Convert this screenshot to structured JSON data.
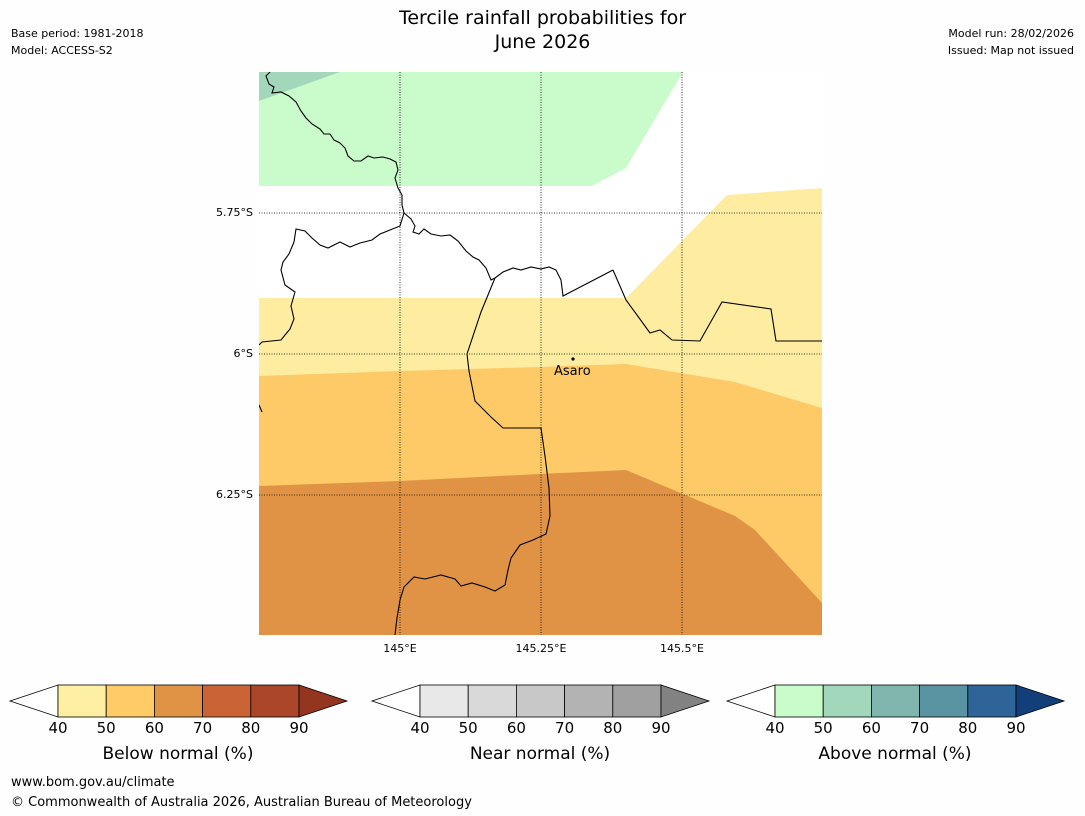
{
  "title": {
    "line1": "Tercile rainfall probabilities for",
    "line2": "June 2026"
  },
  "meta_left": {
    "base_period": "Base period: 1981-2018",
    "model": "Model: ACCESS-S2"
  },
  "meta_right": {
    "model_run": "Model run: 28/02/2026",
    "issued": "Issued: Map not issued"
  },
  "map": {
    "lat_labels": [
      "5.75°S",
      "6°S",
      "6.25°S"
    ],
    "lon_labels": [
      "145°E",
      "145.25°E",
      "145.5°E"
    ],
    "town": "Asaro",
    "colors": {
      "above_40_50": "#c9fbcb",
      "above_50_60": "#a3d7bc",
      "below_40_50": "#fdeb9f",
      "below_50_60": "#fdca67",
      "below_60_70": "#e09345",
      "border": "#000000"
    }
  },
  "legends": [
    {
      "name": "Below normal (%)",
      "ticks": [
        "40",
        "50",
        "60",
        "70",
        "80",
        "90"
      ],
      "colors": [
        "#fef0a2",
        "#fecb67",
        "#e09345",
        "#cb6434",
        "#ac4628",
        "#94351f"
      ]
    },
    {
      "name": "Near normal (%)",
      "ticks": [
        "40",
        "50",
        "60",
        "70",
        "80",
        "90"
      ],
      "colors": [
        "#e8e8e8",
        "#d9d9d9",
        "#c8c8c8",
        "#b3b3b3",
        "#a0a0a0",
        "#828282"
      ]
    },
    {
      "name": "Above normal (%)",
      "ticks": [
        "40",
        "50",
        "60",
        "70",
        "80",
        "90"
      ],
      "colors": [
        "#c9fbcb",
        "#a3d7bc",
        "#80b6ad",
        "#5a93a1",
        "#2e6497",
        "#123e79"
      ]
    }
  ],
  "footer": {
    "url": "www.bom.gov.au/climate",
    "copyright": "© Commonwealth of Australia 2026, Australian Bureau of Meteorology"
  }
}
